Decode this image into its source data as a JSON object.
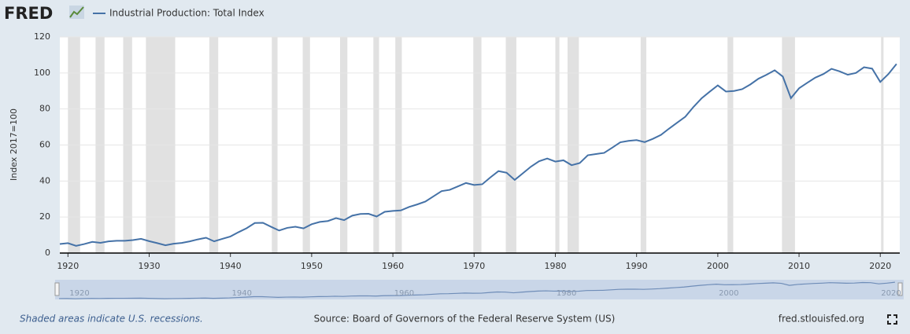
{
  "chart_data": {
    "type": "line",
    "logo": "FRED",
    "y_label": "Index 2017=100",
    "note": "Shaded areas indicate U.S. recessions.",
    "source": "Source: Board of Governors of the Federal Reserve System (US)",
    "site": "fred.stlouisfed.org",
    "x": [
      1919,
      1920,
      1921,
      1922,
      1923,
      1924,
      1925,
      1926,
      1927,
      1928,
      1929,
      1930,
      1931,
      1932,
      1933,
      1934,
      1935,
      1936,
      1937,
      1938,
      1939,
      1940,
      1941,
      1942,
      1943,
      1944,
      1945,
      1946,
      1947,
      1948,
      1949,
      1950,
      1951,
      1952,
      1953,
      1954,
      1955,
      1956,
      1957,
      1958,
      1959,
      1960,
      1961,
      1962,
      1963,
      1964,
      1965,
      1966,
      1967,
      1968,
      1969,
      1970,
      1971,
      1972,
      1973,
      1974,
      1975,
      1976,
      1977,
      1978,
      1979,
      1980,
      1981,
      1982,
      1983,
      1984,
      1985,
      1986,
      1987,
      1988,
      1989,
      1990,
      1991,
      1992,
      1993,
      1994,
      1995,
      1996,
      1997,
      1998,
      1999,
      2000,
      2001,
      2002,
      2003,
      2004,
      2005,
      2006,
      2007,
      2008,
      2009,
      2010,
      2011,
      2012,
      2013,
      2014,
      2015,
      2016,
      2017,
      2018,
      2019,
      2020,
      2021,
      2022
    ],
    "series": [
      {
        "name": "Industrial Production: Total Index",
        "color": "#4572a7",
        "values": [
          5,
          5.5,
          4,
          5,
          6.2,
          5.7,
          6.5,
          6.8,
          6.8,
          7.2,
          7.9,
          6.6,
          5.5,
          4.3,
          5.2,
          5.6,
          6.5,
          7.6,
          8.5,
          6.5,
          7.9,
          9.2,
          11.6,
          13.8,
          16.7,
          16.8,
          14.6,
          12.5,
          14,
          14.6,
          13.7,
          16,
          17.3,
          17.8,
          19.4,
          18.3,
          20.8,
          21.7,
          21.8,
          20.3,
          22.9,
          23.4,
          23.7,
          25.6,
          27,
          28.6,
          31.5,
          34.4,
          35.1,
          37,
          38.9,
          37.8,
          38.2,
          42,
          45.5,
          44.6,
          40.6,
          44.3,
          48,
          51,
          52.5,
          50.8,
          51.5,
          48.8,
          50,
          54.3,
          55,
          55.6,
          58.5,
          61.5,
          62.3,
          62.7,
          61.6,
          63.4,
          65.6,
          69.1,
          72.4,
          75.7,
          81.1,
          85.9,
          89.6,
          93.1,
          89.7,
          90,
          91,
          93.6,
          96.8,
          99,
          101.5,
          98,
          86,
          91.5,
          94.5,
          97.4,
          99.4,
          102.3,
          100.9,
          99,
          100,
          103.2,
          102.4,
          95,
          99.4,
          105
        ]
      }
    ],
    "recessions": [
      [
        1920,
        1921.5
      ],
      [
        1923.4,
        1924.5
      ],
      [
        1926.8,
        1927.9
      ],
      [
        1929.6,
        1933.2
      ],
      [
        1937.4,
        1938.5
      ],
      [
        1945.1,
        1945.8
      ],
      [
        1948.9,
        1949.8
      ],
      [
        1953.5,
        1954.4
      ],
      [
        1957.6,
        1958.3
      ],
      [
        1960.3,
        1961.1
      ],
      [
        1969.9,
        1970.9
      ],
      [
        1973.9,
        1975.2
      ],
      [
        1980,
        1980.5
      ],
      [
        1981.5,
        1982.9
      ],
      [
        1990.5,
        1991.2
      ],
      [
        2001.2,
        2001.9
      ],
      [
        2007.9,
        2009.5
      ],
      [
        2020.1,
        2020.4
      ]
    ],
    "recession_color": "#e1e1e1",
    "xlim": [
      1919,
      2022.4
    ],
    "xticks": [
      1920,
      1930,
      1940,
      1950,
      1960,
      1970,
      1980,
      1990,
      2000,
      2010,
      2020
    ],
    "ylim": [
      0,
      120
    ],
    "yticks": [
      0,
      20,
      40,
      60,
      80,
      100,
      120
    ],
    "grid": true,
    "navigator_xticks": [
      1920,
      1940,
      1960,
      1980,
      2000,
      2020
    ]
  }
}
